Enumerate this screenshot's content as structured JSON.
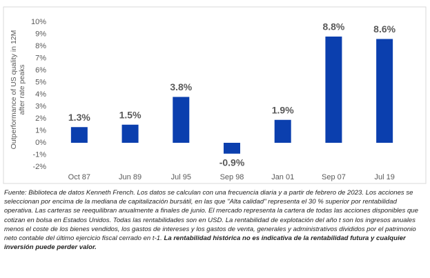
{
  "chart_data": {
    "type": "bar",
    "y_label": [
      "Outperformance of US quality in 12M",
      "after rate peaks"
    ],
    "categories": [
      "Oct 87",
      "Jun 89",
      "Jul 95",
      "Sep 98",
      "Jan 01",
      "Sep 07",
      "Jul 19"
    ],
    "values": [
      1.3,
      1.5,
      3.8,
      -0.9,
      1.9,
      8.8,
      8.6
    ],
    "value_labels": [
      "1.3%",
      "1.5%",
      "3.8%",
      "-0.9%",
      "1.9%",
      "8.8%",
      "8.6%"
    ],
    "color": "#0b3fae",
    "ylim": [
      -2,
      10
    ],
    "yticks": [
      {
        "value": -2,
        "label": "-2%"
      },
      {
        "value": -1,
        "label": "-1%"
      },
      {
        "value": 0,
        "label": "0%"
      },
      {
        "value": 1,
        "label": "1%"
      },
      {
        "value": 2,
        "label": "2%"
      },
      {
        "value": 3,
        "label": "3%"
      },
      {
        "value": 4,
        "label": "4%"
      },
      {
        "value": 5,
        "label": "5%"
      },
      {
        "value": 6,
        "label": "6%"
      },
      {
        "value": 7,
        "label": "7%"
      },
      {
        "value": 8,
        "label": "8%"
      },
      {
        "value": 9,
        "label": "9%"
      },
      {
        "value": 10,
        "label": "10%"
      }
    ],
    "grid": false,
    "footnote": "Fuente: Biblioteca de datos Kenneth French. Los datos se calculan con una frecuencia diaria y a partir de febrero de 2023. Los acciones se seleccionan por encima de la mediana de capitalización bursátil, en las que \"Alta calidad\" representa el 30 % superior por rentabilidad operativa. Las carteras se reequilibran anualmente a finales de junio. El mercado representa la cartera de todas las acciones disponibles que cotizan en bolsa en Estados Unidos. Todas las rentabilidades son en USD. La rentabilidad de explotación del año t son los ingresos anuales menos el coste de los bienes vendidos, los gastos de intereses y los gastos de venta, generales y administrativos divididos por el patrimonio neto contable del último ejercicio fiscal cerrado en t-1.",
    "footnote_emphasis": "La rentabilidad histórica no es indicativa de la rentabilidad futura y cualquier inversión puede perder valor."
  }
}
